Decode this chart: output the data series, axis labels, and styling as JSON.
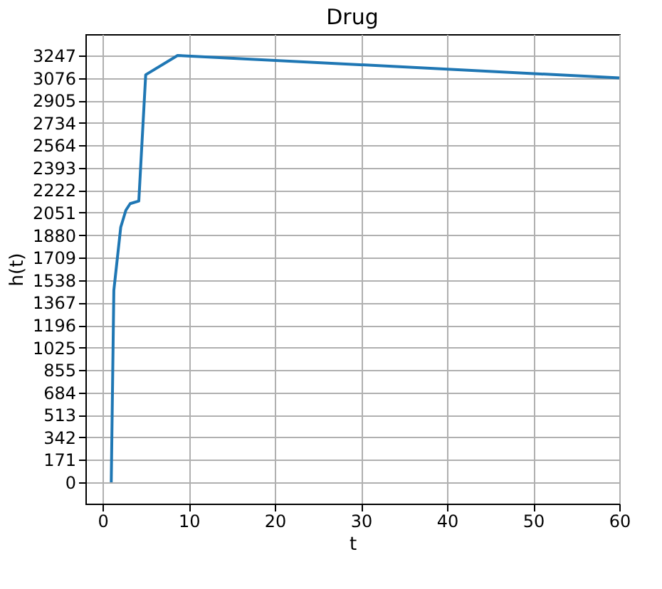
{
  "chart_data": {
    "type": "line",
    "title": "Drug",
    "xlabel": "t",
    "ylabel": "h(t)",
    "x": [
      1,
      1.3,
      2.1,
      2.7,
      3.2,
      4.2,
      5,
      8.7,
      60
    ],
    "series": [
      {
        "color": "#1f77b4",
        "values": [
          0,
          1460,
          1940,
          2070,
          2120,
          2140,
          3100,
          3247,
          3076
        ]
      }
    ],
    "xlim": [
      -2,
      60
    ],
    "xticks": [
      0,
      10,
      20,
      30,
      40,
      50,
      60
    ],
    "ylim": [
      -162,
      3409
    ],
    "yticks": [
      0,
      171,
      342,
      513,
      684,
      855,
      1025,
      1196,
      1367,
      1538,
      1709,
      1880,
      2051,
      2222,
      2393,
      2564,
      2734,
      2905,
      3076,
      3247
    ],
    "grid": true,
    "legend": false,
    "marker": "none",
    "line_style": "solid"
  }
}
